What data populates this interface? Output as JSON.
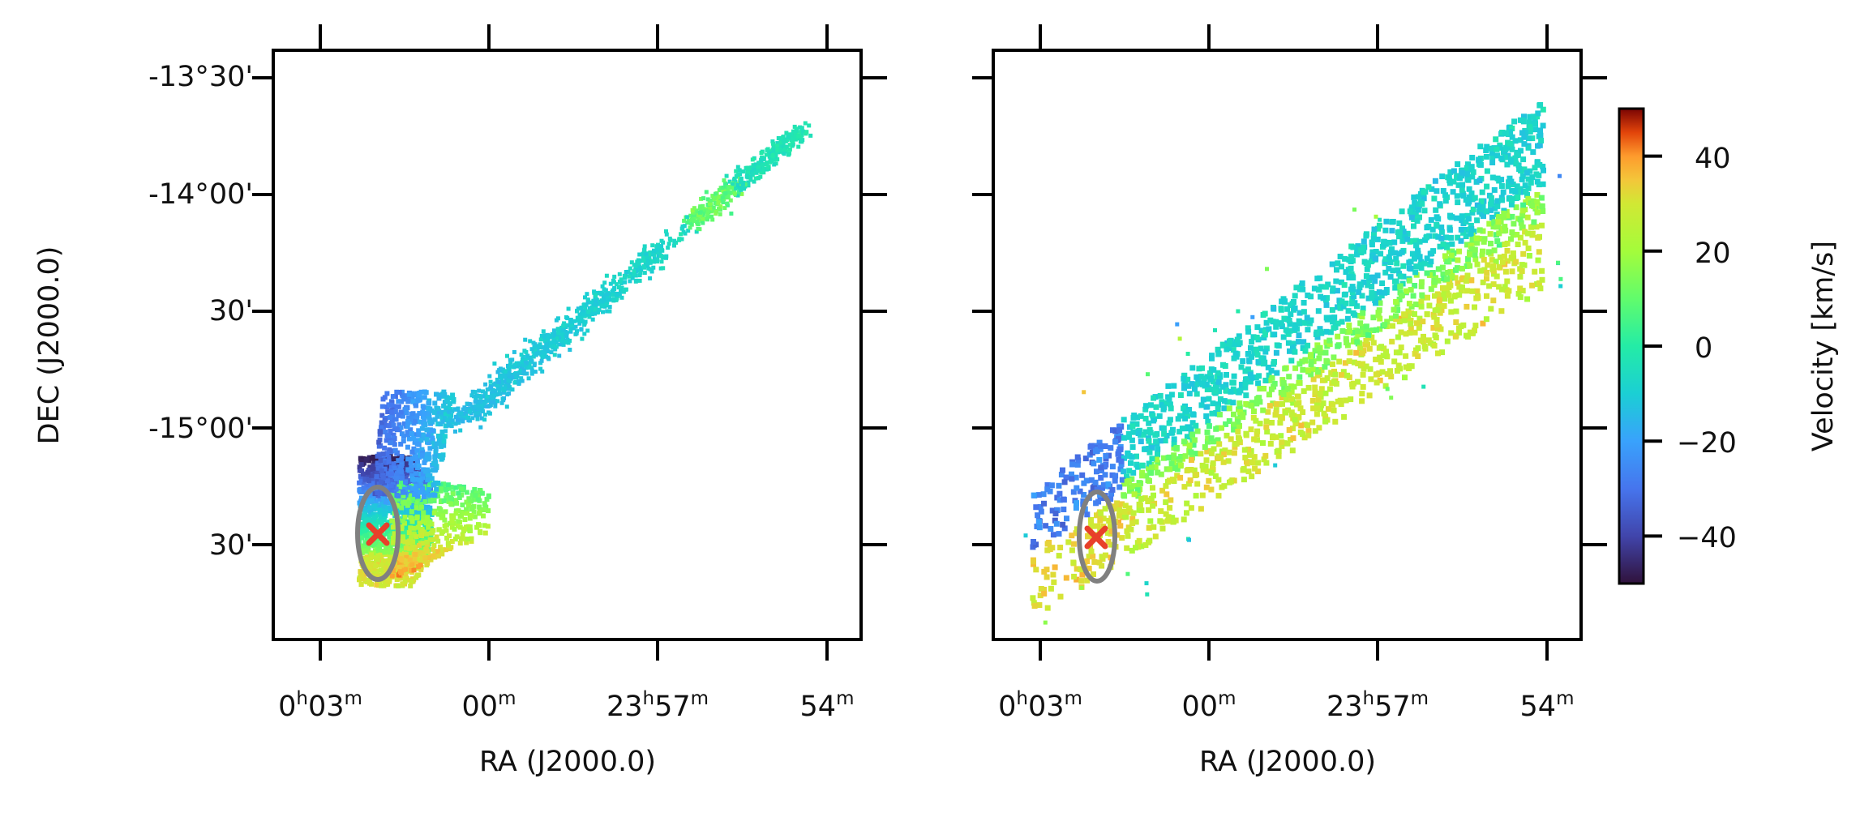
{
  "chart_data": [
    {
      "type": "scatter",
      "panel": "left",
      "xlabel": "RA (J2000.0)",
      "ylabel": "DEC (J2000.0)",
      "x_ticks": [
        {
          "h": "0",
          "hu": "h",
          "m": "03",
          "mu": "m"
        },
        {
          "h": "",
          "hu": "",
          "m": "00",
          "mu": "m"
        },
        {
          "h": "23",
          "hu": "h",
          "m": "57",
          "mu": "m"
        },
        {
          "h": "",
          "hu": "",
          "m": "54",
          "mu": "m"
        }
      ],
      "y_ticks": [
        "-13°30'",
        "-14°00'",
        "30'",
        "-15°00'",
        "30'"
      ],
      "colorbar": null,
      "markers": [
        {
          "type": "ellipse",
          "color": "#808080",
          "ra_min": 2.15,
          "dec_deg": -15.52,
          "width_ra_min": 0.42,
          "height_deg": 0.21
        },
        {
          "type": "cross",
          "color": "#e8402a",
          "ra_min": 2.15,
          "dec_deg": -15.51
        }
      ],
      "velocity_field": "ridge of emission from RA 0h02.5m, DEC -15°31' (velocities -40 to +40 km/s, blue core over red southern edge) extending north-east to RA 23h55.8m, DEC -13°48' near 0 to -10 km/s"
    },
    {
      "type": "scatter",
      "panel": "right",
      "xlabel": "RA (J2000.0)",
      "ylabel": "",
      "x_ticks": [
        {
          "h": "0",
          "hu": "h",
          "m": "03",
          "mu": "m"
        },
        {
          "h": "",
          "hu": "",
          "m": "00",
          "mu": "m"
        },
        {
          "h": "23",
          "hu": "h",
          "m": "57",
          "mu": "m"
        },
        {
          "h": "",
          "hu": "",
          "m": "54",
          "mu": "m"
        }
      ],
      "y_ticks": [],
      "markers": [
        {
          "type": "ellipse",
          "color": "#808080",
          "ra_min": 2.05,
          "dec_deg": -15.48,
          "width_ra_min": 0.35,
          "height_deg": 0.2
        },
        {
          "type": "cross",
          "color": "#e8402a",
          "ra_min": 2.05,
          "dec_deg": -15.47
        }
      ],
      "colorbar": {
        "label": "Velocity [km/s]",
        "range": [
          -50,
          50
        ],
        "ticks": [
          "40",
          "20",
          "0",
          "−20",
          "−40"
        ],
        "tick_values": [
          40,
          20,
          0,
          -20,
          -40
        ],
        "colormap": "turbo"
      },
      "velocity_field": "broad band of emission from RA 0h02.5m, DEC -15°40' to RA 23h54.7m, DEC -13°40'; central ridge near 0 to -10 km/s, south-east edge +30 to +40 km/s, south-west tip -20 to -40 km/s"
    }
  ]
}
